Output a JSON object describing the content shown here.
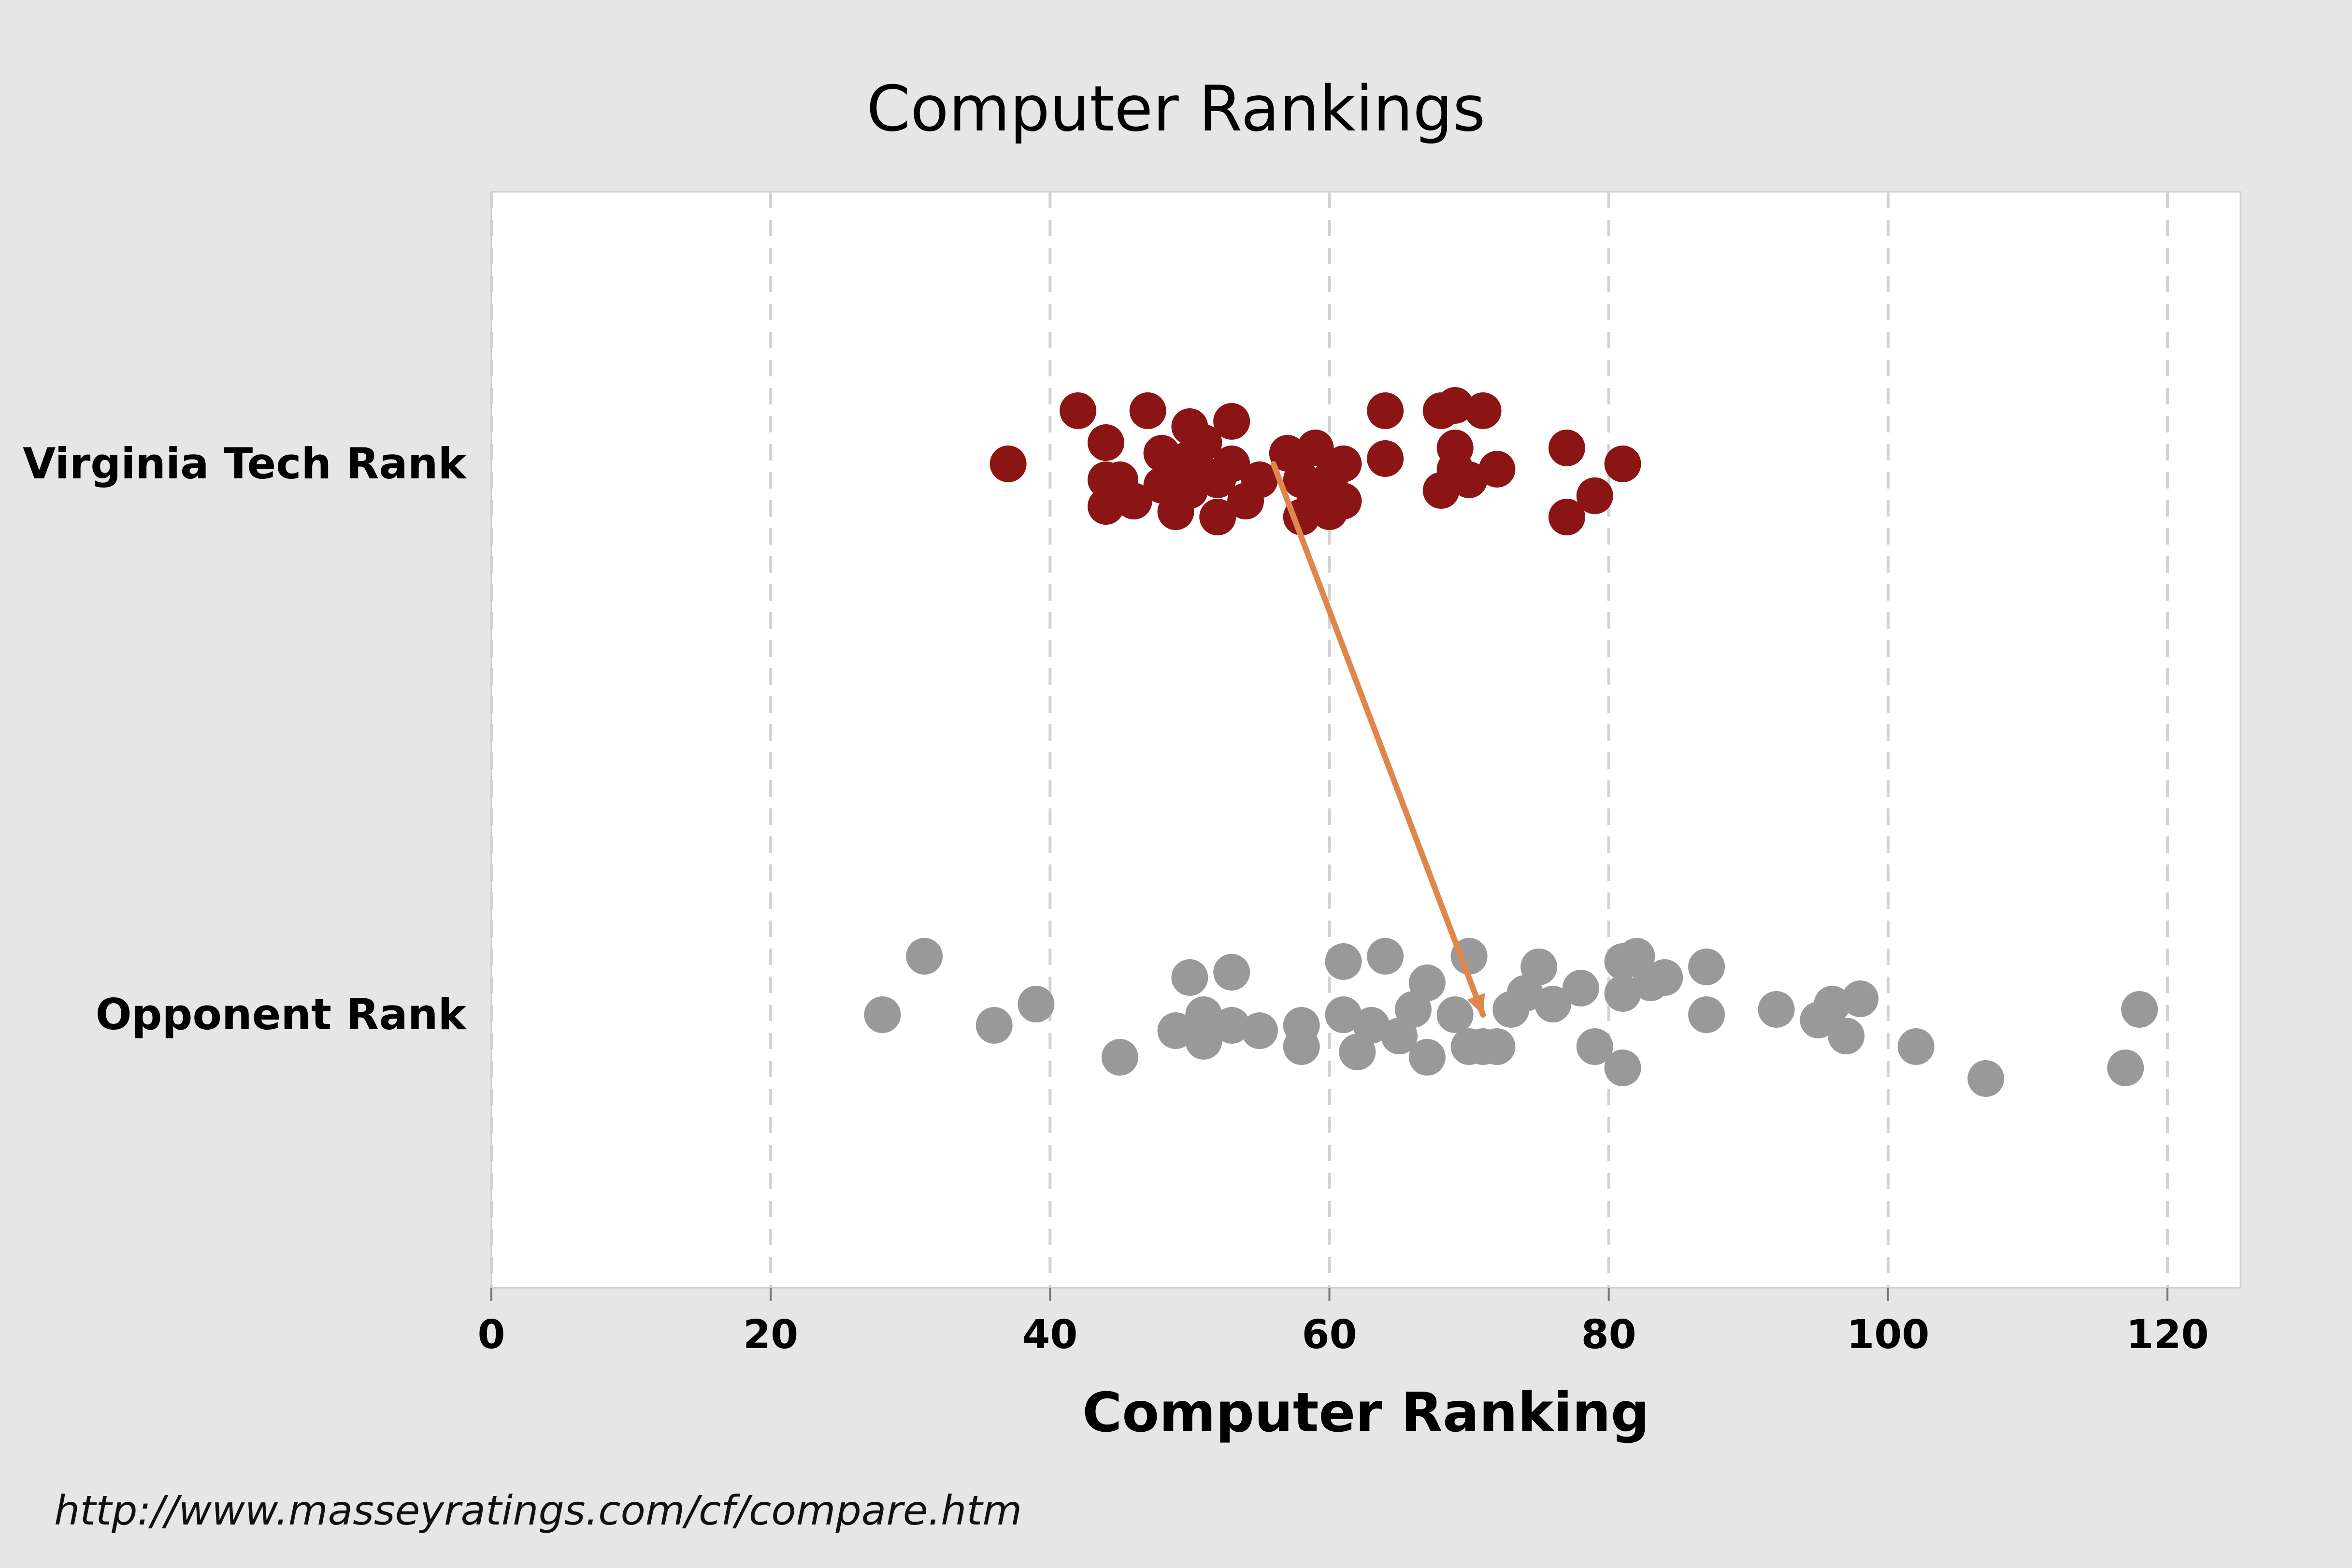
{
  "chart_data": {
    "type": "scatter",
    "title": "Computer Rankings",
    "xlabel": "Computer Ranking",
    "ylabel": "",
    "xlim": [
      0,
      125
    ],
    "xticks": [
      0,
      20,
      40,
      60,
      80,
      100,
      120
    ],
    "x_grid": "dashed vertical",
    "categories": [
      "Virginia Tech Rank",
      "Opponent Rank"
    ],
    "series": [
      {
        "category": "Virginia Tech Rank",
        "color": "#8b1414",
        "points": [
          {
            "x": 37,
            "j": 0.0
          },
          {
            "x": 42,
            "j": 0.1
          },
          {
            "x": 44,
            "j": 0.04
          },
          {
            "x": 44,
            "j": -0.03
          },
          {
            "x": 44,
            "j": -0.08
          },
          {
            "x": 45,
            "j": -0.03
          },
          {
            "x": 46,
            "j": -0.07
          },
          {
            "x": 47,
            "j": 0.1
          },
          {
            "x": 48,
            "j": 0.02
          },
          {
            "x": 48,
            "j": -0.04
          },
          {
            "x": 49,
            "j": -0.02
          },
          {
            "x": 49,
            "j": -0.09
          },
          {
            "x": 50,
            "j": 0.07
          },
          {
            "x": 50,
            "j": 0.01
          },
          {
            "x": 50,
            "j": -0.05
          },
          {
            "x": 51,
            "j": 0.04
          },
          {
            "x": 51,
            "j": -0.02
          },
          {
            "x": 52,
            "j": -0.03
          },
          {
            "x": 52,
            "j": -0.1
          },
          {
            "x": 53,
            "j": 0.08
          },
          {
            "x": 53,
            "j": 0.0
          },
          {
            "x": 54,
            "j": -0.07
          },
          {
            "x": 55,
            "j": -0.03
          },
          {
            "x": 57,
            "j": 0.02
          },
          {
            "x": 58,
            "j": -0.03
          },
          {
            "x": 58,
            "j": -0.1
          },
          {
            "x": 59,
            "j": 0.03
          },
          {
            "x": 59,
            "j": -0.06
          },
          {
            "x": 60,
            "j": -0.03
          },
          {
            "x": 60,
            "j": -0.09
          },
          {
            "x": 61,
            "j": 0.0
          },
          {
            "x": 61,
            "j": -0.07
          },
          {
            "x": 64,
            "j": 0.1
          },
          {
            "x": 64,
            "j": 0.01
          },
          {
            "x": 68,
            "j": 0.1
          },
          {
            "x": 68,
            "j": -0.05
          },
          {
            "x": 69,
            "j": 0.11
          },
          {
            "x": 69,
            "j": 0.03
          },
          {
            "x": 69,
            "j": -0.01
          },
          {
            "x": 70,
            "j": -0.03
          },
          {
            "x": 71,
            "j": 0.1
          },
          {
            "x": 72,
            "j": -0.01
          },
          {
            "x": 77,
            "j": 0.03
          },
          {
            "x": 77,
            "j": -0.1
          },
          {
            "x": 79,
            "j": -0.06
          },
          {
            "x": 81,
            "j": 0.0
          }
        ]
      },
      {
        "category": "Opponent Rank",
        "color": "#999999",
        "points": [
          {
            "x": 28,
            "j": 0.0
          },
          {
            "x": 31,
            "j": 0.11
          },
          {
            "x": 36,
            "j": -0.02
          },
          {
            "x": 39,
            "j": 0.02
          },
          {
            "x": 45,
            "j": -0.08
          },
          {
            "x": 49,
            "j": -0.03
          },
          {
            "x": 50,
            "j": 0.07
          },
          {
            "x": 51,
            "j": 0.0
          },
          {
            "x": 51,
            "j": -0.05
          },
          {
            "x": 53,
            "j": 0.08
          },
          {
            "x": 53,
            "j": -0.02
          },
          {
            "x": 55,
            "j": -0.03
          },
          {
            "x": 58,
            "j": -0.02
          },
          {
            "x": 58,
            "j": -0.06
          },
          {
            "x": 61,
            "j": 0.1
          },
          {
            "x": 61,
            "j": 0.0
          },
          {
            "x": 62,
            "j": -0.07
          },
          {
            "x": 63,
            "j": -0.02
          },
          {
            "x": 64,
            "j": 0.11
          },
          {
            "x": 65,
            "j": -0.04
          },
          {
            "x": 66,
            "j": 0.01
          },
          {
            "x": 67,
            "j": 0.06
          },
          {
            "x": 67,
            "j": -0.08
          },
          {
            "x": 69,
            "j": 0.0
          },
          {
            "x": 70,
            "j": 0.11
          },
          {
            "x": 70,
            "j": -0.06
          },
          {
            "x": 71,
            "j": -0.06
          },
          {
            "x": 72,
            "j": -0.06
          },
          {
            "x": 73,
            "j": 0.01
          },
          {
            "x": 74,
            "j": 0.04
          },
          {
            "x": 75,
            "j": 0.09
          },
          {
            "x": 76,
            "j": 0.02
          },
          {
            "x": 78,
            "j": 0.05
          },
          {
            "x": 79,
            "j": -0.06
          },
          {
            "x": 81,
            "j": 0.1
          },
          {
            "x": 81,
            "j": 0.04
          },
          {
            "x": 81,
            "j": -0.1
          },
          {
            "x": 82,
            "j": 0.11
          },
          {
            "x": 83,
            "j": 0.06
          },
          {
            "x": 84,
            "j": 0.07
          },
          {
            "x": 87,
            "j": 0.09
          },
          {
            "x": 87,
            "j": 0.0
          },
          {
            "x": 92,
            "j": 0.01
          },
          {
            "x": 95,
            "j": -0.01
          },
          {
            "x": 96,
            "j": 0.02
          },
          {
            "x": 97,
            "j": -0.04
          },
          {
            "x": 98,
            "j": 0.03
          },
          {
            "x": 102,
            "j": -0.06
          },
          {
            "x": 107,
            "j": -0.12
          },
          {
            "x": 117,
            "j": -0.1
          },
          {
            "x": 118,
            "j": 0.01
          }
        ]
      }
    ],
    "annotation": {
      "type": "arrow",
      "color": "#e0864a",
      "from": {
        "x": 56,
        "category": "Virginia Tech Rank"
      },
      "to": {
        "x": 71,
        "category": "Opponent Rank"
      }
    }
  },
  "footer": {
    "source": "http://www.masseyratings.com/cf/compare.htm"
  }
}
